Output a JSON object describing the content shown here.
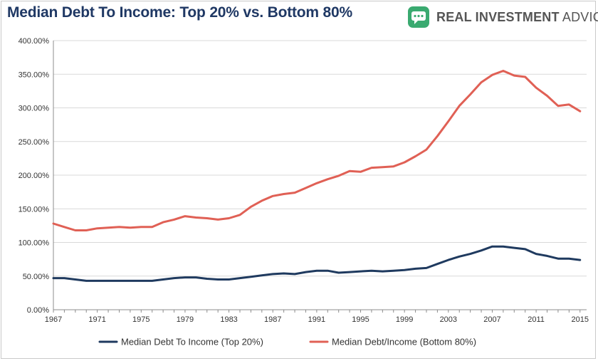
{
  "header": {
    "title": "Median Debt To Income: Top 20% vs. Bottom 80%",
    "brand_bold": "REAL INVESTMENT",
    "brand_rest": " ADVICE",
    "brand_icon": "chat-bubble-icon",
    "brand_color": "#3aaa70"
  },
  "chart_data": {
    "type": "line",
    "title": "Median Debt To Income: Top 20% vs. Bottom 80%",
    "xlim": [
      1967,
      1971,
      1975,
      1979,
      1983,
      1987,
      1991,
      1995,
      1999,
      2003,
      2007,
      2011,
      2015
    ],
    "x_ticks": [
      "1967",
      "1971",
      "1975",
      "1979",
      "1983",
      "1987",
      "1991",
      "1995",
      "1999",
      "2003",
      "2007",
      "2011",
      "2015"
    ],
    "y_ticks": [
      "0.00%",
      "50.00%",
      "100.00%",
      "150.00%",
      "200.00%",
      "250.00%",
      "300.00%",
      "350.00%",
      "400.00%"
    ],
    "ylim": [
      0,
      400
    ],
    "grid": true,
    "legend_position": "bottom",
    "x": [
      1967,
      1968,
      1969,
      1970,
      1971,
      1972,
      1973,
      1974,
      1975,
      1976,
      1977,
      1978,
      1979,
      1980,
      1981,
      1982,
      1983,
      1984,
      1985,
      1986,
      1987,
      1988,
      1989,
      1990,
      1991,
      1992,
      1993,
      1994,
      1995,
      1996,
      1997,
      1998,
      1999,
      2000,
      2001,
      2002,
      2003,
      2004,
      2005,
      2006,
      2007,
      2008,
      2009,
      2010,
      2011,
      2012,
      2013,
      2014,
      2015
    ],
    "series": [
      {
        "name": "Median Debt To Income (Top 20%)",
        "color": "#1f3a5f",
        "values": [
          47,
          47,
          45,
          43,
          43,
          43,
          43,
          43,
          43,
          43,
          45,
          47,
          48,
          48,
          46,
          45,
          45,
          47,
          49,
          51,
          53,
          54,
          53,
          56,
          58,
          58,
          55,
          56,
          57,
          58,
          57,
          58,
          59,
          61,
          62,
          68,
          74,
          79,
          83,
          88,
          94,
          94,
          92,
          90,
          83,
          80,
          76,
          76,
          74
        ]
      },
      {
        "name": "Median Debt/Income (Bottom 80%)",
        "color": "#e06055",
        "values": [
          128,
          123,
          118,
          118,
          121,
          122,
          123,
          122,
          123,
          123,
          130,
          134,
          139,
          137,
          136,
          134,
          136,
          141,
          153,
          162,
          169,
          172,
          174,
          181,
          188,
          194,
          199,
          206,
          205,
          211,
          212,
          213,
          219,
          228,
          238,
          258,
          280,
          303,
          320,
          338,
          349,
          355,
          348,
          346,
          330,
          318,
          303,
          305,
          295
        ]
      }
    ]
  }
}
